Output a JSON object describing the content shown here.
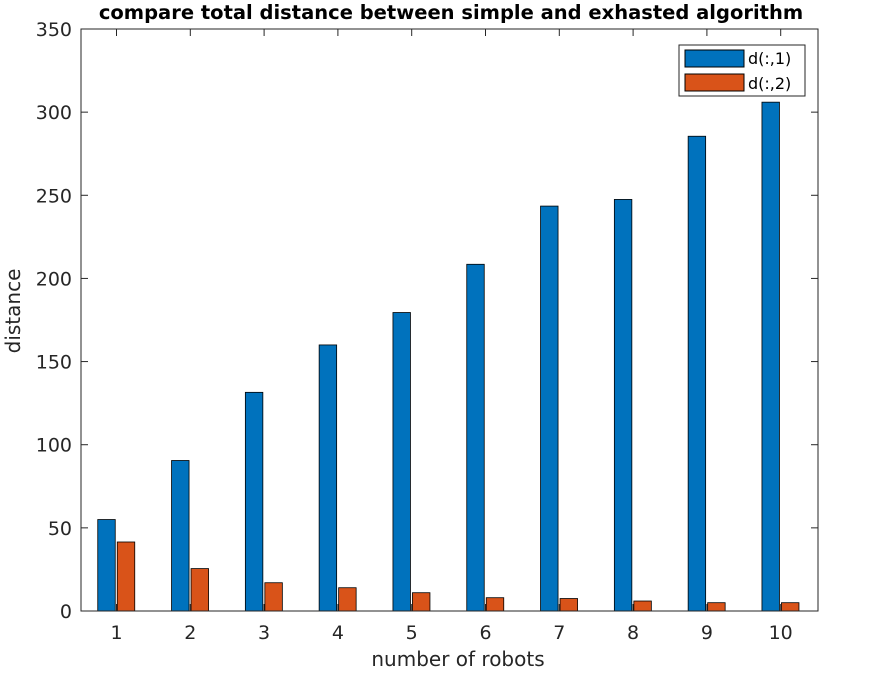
{
  "chart_data": {
    "type": "bar",
    "title": "compare total distance between simple and exhasted algorithm",
    "xlabel": "number of robots",
    "ylabel": "distance",
    "categories": [
      "1",
      "2",
      "3",
      "4",
      "5",
      "6",
      "7",
      "8",
      "9",
      "10"
    ],
    "yticks": [
      "0",
      "50",
      "100",
      "150",
      "200",
      "250",
      "300",
      "350"
    ],
    "ylim": [
      0,
      350
    ],
    "grid": false,
    "legend_position": "top-right",
    "series": [
      {
        "name": "d(:,1)",
        "color": "#0072bd",
        "values": [
          55,
          90.5,
          131.5,
          160,
          179.5,
          208.5,
          243.5,
          247.5,
          285.5,
          306
        ]
      },
      {
        "name": "d(:,2)",
        "color": "#d95319",
        "values": [
          41.5,
          25.5,
          17,
          14,
          11,
          8,
          7.5,
          6,
          5,
          5
        ]
      }
    ]
  }
}
